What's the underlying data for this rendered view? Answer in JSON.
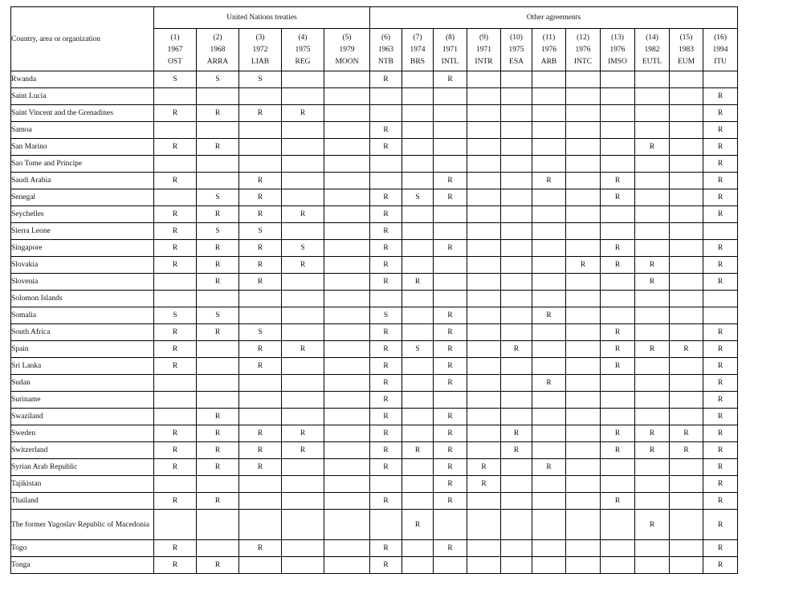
{
  "header": {
    "country_label": "Country, area or organization",
    "un_group_label": "United Nations treaties",
    "other_group_label": "Other agreements"
  },
  "columns": [
    {
      "num": "(1)",
      "year": "1967",
      "code": "OST"
    },
    {
      "num": "(2)",
      "year": "1968",
      "code": "ARRA"
    },
    {
      "num": "(3)",
      "year": "1972",
      "code": "LIAB"
    },
    {
      "num": "(4)",
      "year": "1975",
      "code": "REG"
    },
    {
      "num": "(5)",
      "year": "1979",
      "code": "MOON"
    },
    {
      "num": "(6)",
      "year": "1963",
      "code": "NTB"
    },
    {
      "num": "(7)",
      "year": "1974",
      "code": "BRS"
    },
    {
      "num": "(8)",
      "year": "1971",
      "code": "INTL"
    },
    {
      "num": "(9)",
      "year": "1971",
      "code": "INTR"
    },
    {
      "num": "(10)",
      "year": "1975",
      "code": "ESA"
    },
    {
      "num": "(11)",
      "year": "1976",
      "code": "ARB"
    },
    {
      "num": "(12)",
      "year": "1976",
      "code": "INTC"
    },
    {
      "num": "(13)",
      "year": "1976",
      "code": "IMSO"
    },
    {
      "num": "(14)",
      "year": "1982",
      "code": "EUTL"
    },
    {
      "num": "(15)",
      "year": "1983",
      "code": "EUM"
    },
    {
      "num": "(16)",
      "year": "1994",
      "code": "ITU"
    }
  ],
  "rows": [
    {
      "country": "Rwanda",
      "cells": [
        "S",
        "S",
        "S",
        "",
        "",
        "R",
        "",
        "R",
        "",
        "",
        "",
        "",
        "",
        "",
        "",
        ""
      ]
    },
    {
      "country": "Saint Lucia",
      "cells": [
        "",
        "",
        "",
        "",
        "",
        "",
        "",
        "",
        "",
        "",
        "",
        "",
        "",
        "",
        "",
        "R"
      ]
    },
    {
      "country": "Saint Vincent and the Grenadines",
      "cells": [
        "R",
        "R",
        "R",
        "R",
        "",
        "",
        "",
        "",
        "",
        "",
        "",
        "",
        "",
        "",
        "",
        "R"
      ]
    },
    {
      "country": "Samoa",
      "cells": [
        "",
        "",
        "",
        "",
        "",
        "R",
        "",
        "",
        "",
        "",
        "",
        "",
        "",
        "",
        "",
        "R"
      ]
    },
    {
      "country": "San Marino",
      "cells": [
        "R",
        "R",
        "",
        "",
        "",
        "R",
        "",
        "",
        "",
        "",
        "",
        "",
        "",
        "R",
        "",
        "R"
      ]
    },
    {
      "country": "Sao Tome and Principe",
      "cells": [
        "",
        "",
        "",
        "",
        "",
        "",
        "",
        "",
        "",
        "",
        "",
        "",
        "",
        "",
        "",
        "R"
      ]
    },
    {
      "country": "Saudi Arabia",
      "cells": [
        "R",
        "",
        "R",
        "",
        "",
        "",
        "",
        "R",
        "",
        "",
        "R",
        "",
        "R",
        "",
        "",
        "R"
      ]
    },
    {
      "country": "Senegal",
      "cells": [
        "",
        "S",
        "R",
        "",
        "",
        "R",
        "S",
        "R",
        "",
        "",
        "",
        "",
        "R",
        "",
        "",
        "R"
      ]
    },
    {
      "country": "Seychelles",
      "cells": [
        "R",
        "R",
        "R",
        "R",
        "",
        "R",
        "",
        "",
        "",
        "",
        "",
        "",
        "",
        "",
        "",
        "R"
      ]
    },
    {
      "country": "Sierra Leone",
      "cells": [
        "R",
        "S",
        "S",
        "",
        "",
        "R",
        "",
        "",
        "",
        "",
        "",
        "",
        "",
        "",
        "",
        ""
      ]
    },
    {
      "country": "Singapore",
      "cells": [
        "R",
        "R",
        "R",
        "S",
        "",
        "R",
        "",
        "R",
        "",
        "",
        "",
        "",
        "R",
        "",
        "",
        "R"
      ]
    },
    {
      "country": "Slovakia",
      "cells": [
        "R",
        "R",
        "R",
        "R",
        "",
        "R",
        "",
        "",
        "",
        "",
        "",
        "R",
        "R",
        "R",
        "",
        "R"
      ]
    },
    {
      "country": "Slovenia",
      "cells": [
        "",
        "R",
        "R",
        "",
        "",
        "R",
        "R",
        "",
        "",
        "",
        "",
        "",
        "",
        "R",
        "",
        "R"
      ]
    },
    {
      "country": "Solomon  Islands",
      "cells": [
        "",
        "",
        "",
        "",
        "",
        "",
        "",
        "",
        "",
        "",
        "",
        "",
        "",
        "",
        "",
        ""
      ]
    },
    {
      "country": "Somalia",
      "cells": [
        "S",
        "S",
        "",
        "",
        "",
        "S",
        "",
        "R",
        "",
        "",
        "R",
        "",
        "",
        "",
        "",
        ""
      ]
    },
    {
      "country": "South Africa",
      "cells": [
        "R",
        "R",
        "S",
        "",
        "",
        "R",
        "",
        "R",
        "",
        "",
        "",
        "",
        "R",
        "",
        "",
        "R"
      ]
    },
    {
      "country": "Spain",
      "cells": [
        "R",
        "",
        "R",
        "R",
        "",
        "R",
        "S",
        "R",
        "",
        "R",
        "",
        "",
        "R",
        "R",
        "R",
        "R"
      ]
    },
    {
      "country": "Sri Lanka",
      "cells": [
        "R",
        "",
        "R",
        "",
        "",
        "R",
        "",
        "R",
        "",
        "",
        "",
        "",
        "R",
        "",
        "",
        "R"
      ]
    },
    {
      "country": "Sudan",
      "cells": [
        "",
        "",
        "",
        "",
        "",
        "R",
        "",
        "R",
        "",
        "",
        "R",
        "",
        "",
        "",
        "",
        "R"
      ]
    },
    {
      "country": "Suriname",
      "cells": [
        "",
        "",
        "",
        "",
        "",
        "R",
        "",
        "",
        "",
        "",
        "",
        "",
        "",
        "",
        "",
        "R"
      ]
    },
    {
      "country": "Swaziland",
      "cells": [
        "",
        "R",
        "",
        "",
        "",
        "R",
        "",
        "R",
        "",
        "",
        "",
        "",
        "",
        "",
        "",
        "R"
      ]
    },
    {
      "country": "Sweden",
      "cells": [
        "R",
        "R",
        "R",
        "R",
        "",
        "R",
        "",
        "R",
        "",
        "R",
        "",
        "",
        "R",
        "R",
        "R",
        "R"
      ]
    },
    {
      "country": "Switzerland",
      "cells": [
        "R",
        "R",
        "R",
        "R",
        "",
        "R",
        "R",
        "R",
        "",
        "R",
        "",
        "",
        "R",
        "R",
        "R",
        "R"
      ]
    },
    {
      "country": "Syrian Arab Republic",
      "cells": [
        "R",
        "R",
        "R",
        "",
        "",
        "R",
        "",
        "R",
        "R",
        "",
        "R",
        "",
        "",
        "",
        "",
        "R"
      ]
    },
    {
      "country": "Tajikistan",
      "cells": [
        "",
        "",
        "",
        "",
        "",
        "",
        "",
        "R",
        "R",
        "",
        "",
        "",
        "",
        "",
        "",
        "R"
      ]
    },
    {
      "country": "Thailand",
      "cells": [
        "R",
        "R",
        "",
        "",
        "",
        "R",
        "",
        "R",
        "",
        "",
        "",
        "",
        "R",
        "",
        "",
        "R"
      ]
    },
    {
      "country": "The former Yugoslav Republic of Macedonia",
      "cells": [
        "",
        "",
        "",
        "",
        "",
        "",
        "R",
        "",
        "",
        "",
        "",
        "",
        "",
        "R",
        "",
        "R"
      ]
    },
    {
      "country": "Togo",
      "cells": [
        "R",
        "",
        "R",
        "",
        "",
        "R",
        "",
        "R",
        "",
        "",
        "",
        "",
        "",
        "",
        "",
        "R"
      ]
    },
    {
      "country": "Tonga",
      "cells": [
        "R",
        "R",
        "",
        "",
        "",
        "R",
        "",
        "",
        "",
        "",
        "",
        "",
        "",
        "",
        "",
        "R"
      ]
    }
  ]
}
